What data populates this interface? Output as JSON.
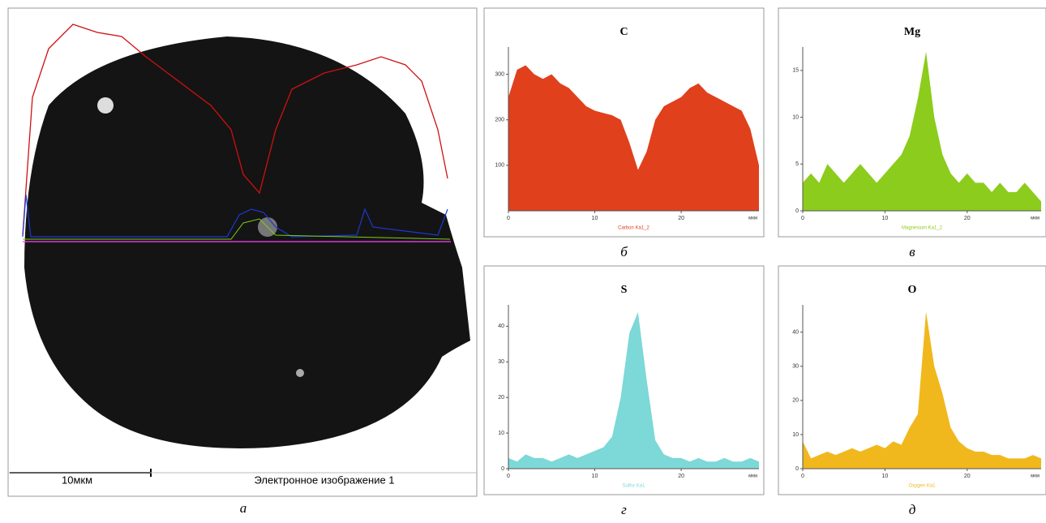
{
  "figure": {
    "scale_label": "10мкм",
    "image_caption": "Электронное изображение 1",
    "image_letter": "а"
  },
  "chart_data": [
    {
      "type": "area",
      "title": "C",
      "letter": "б",
      "x_unit": "мкм",
      "xlabel": "Carbon Ka1_2",
      "color": "#e0401c",
      "x": [
        0,
        1,
        2,
        3,
        4,
        5,
        6,
        7,
        8,
        9,
        10,
        11,
        12,
        13,
        14,
        15,
        16,
        17,
        18,
        19,
        20,
        21,
        22,
        23,
        24,
        25,
        26,
        27,
        28,
        29
      ],
      "values": [
        250,
        310,
        320,
        300,
        290,
        300,
        280,
        270,
        250,
        230,
        220,
        215,
        210,
        200,
        150,
        90,
        130,
        200,
        230,
        240,
        250,
        270,
        280,
        260,
        250,
        240,
        230,
        220,
        180,
        100
      ],
      "xlim": [
        0,
        29
      ],
      "ylim": [
        0,
        360
      ],
      "xticks": [
        0,
        10,
        20
      ],
      "yticks": [
        100,
        200,
        300
      ]
    },
    {
      "type": "area",
      "title": "Mg",
      "letter": "в",
      "x_unit": "мкм",
      "xlabel": "Magnesium Ka1_2",
      "color": "#8ccc1c",
      "x": [
        0,
        1,
        2,
        3,
        4,
        5,
        6,
        7,
        8,
        9,
        10,
        11,
        12,
        13,
        14,
        15,
        16,
        17,
        18,
        19,
        20,
        21,
        22,
        23,
        24,
        25,
        26,
        27,
        28,
        29
      ],
      "values": [
        3,
        4,
        3,
        5,
        4,
        3,
        4,
        5,
        4,
        3,
        4,
        5,
        6,
        8,
        12,
        17,
        10,
        6,
        4,
        3,
        4,
        3,
        3,
        2,
        3,
        2,
        2,
        3,
        2,
        1
      ],
      "xlim": [
        0,
        29
      ],
      "ylim": [
        0,
        17.5
      ],
      "xticks": [
        0,
        10,
        20
      ],
      "yticks": [
        0,
        5,
        10,
        15
      ]
    },
    {
      "type": "area",
      "title": "S",
      "letter": "г",
      "x_unit": "мкм",
      "xlabel": "Sulfur Ka1",
      "color": "#7dd8d8",
      "x": [
        0,
        1,
        2,
        3,
        4,
        5,
        6,
        7,
        8,
        9,
        10,
        11,
        12,
        13,
        14,
        15,
        16,
        17,
        18,
        19,
        20,
        21,
        22,
        23,
        24,
        25,
        26,
        27,
        28,
        29
      ],
      "values": [
        3,
        2,
        4,
        3,
        3,
        2,
        3,
        4,
        3,
        4,
        5,
        6,
        9,
        20,
        38,
        44,
        25,
        8,
        4,
        3,
        3,
        2,
        3,
        2,
        2,
        3,
        2,
        2,
        3,
        2
      ],
      "xlim": [
        0,
        29
      ],
      "ylim": [
        0,
        46
      ],
      "xticks": [
        0,
        10,
        20
      ],
      "yticks": [
        0,
        10,
        20,
        30,
        40
      ]
    },
    {
      "type": "area",
      "title": "O",
      "letter": "д",
      "x_unit": "мкм",
      "xlabel": "Oxygen Ka1",
      "color": "#f0b81c",
      "x": [
        0,
        1,
        2,
        3,
        4,
        5,
        6,
        7,
        8,
        9,
        10,
        11,
        12,
        13,
        14,
        15,
        16,
        17,
        18,
        19,
        20,
        21,
        22,
        23,
        24,
        25,
        26,
        27,
        28,
        29
      ],
      "values": [
        8,
        3,
        4,
        5,
        4,
        5,
        6,
        5,
        6,
        7,
        6,
        8,
        7,
        12,
        16,
        46,
        30,
        22,
        12,
        8,
        6,
        5,
        5,
        4,
        4,
        3,
        3,
        3,
        4,
        3
      ],
      "xlim": [
        0,
        29
      ],
      "ylim": [
        0,
        48
      ],
      "xticks": [
        0,
        10,
        20
      ],
      "yticks": [
        0,
        10,
        20,
        30,
        40
      ]
    }
  ]
}
